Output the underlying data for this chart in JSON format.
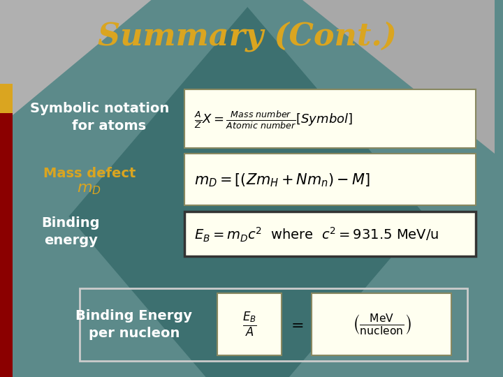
{
  "title": "Summary (Cont.)",
  "title_color": "#DAA520",
  "title_fontsize": 32,
  "bg_color": "#5C8A8A",
  "bg_color2": "#7A9A9A",
  "left_bar_color": "#8B0000",
  "left_bar2_color": "#DAA520",
  "diamond_color": "#4A7A7A",
  "box_fill": "#FFFFF0",
  "box_fill_dark": "#FFFFF0",
  "label1": "Symbolic notation\n    for atoms",
  "label1_color": "#FFFFFF",
  "label2": "Mass defect",
  "label2_color": "#DAA520",
  "label2b": "$m_D$",
  "label2b_color": "#DAA520",
  "label3": "Binding\nenergy",
  "label3_color": "#FFFFFF",
  "label4": "Binding Energy\nper nucleon",
  "label4_color": "#FFFFFF",
  "eq1": "$\\frac{A}{Z}X = \\frac{\\mathrm{Mass\\ number}}{\\mathrm{Atomic\\ number}}\\left[Symbol\\right]$",
  "eq2": "$m_D = \\left[\\left(Zm_H + Nm_n\\right) - M\\right]$",
  "eq3": "$E_B = m_D c^2$  where  $c^2 = 931.5$ MeV/u",
  "eq4a": "$\\frac{E_B}{A}$",
  "eq4b": "$= \\left(\\frac{\\mathrm{MeV}}{\\mathrm{nucleon}}\\right)$"
}
